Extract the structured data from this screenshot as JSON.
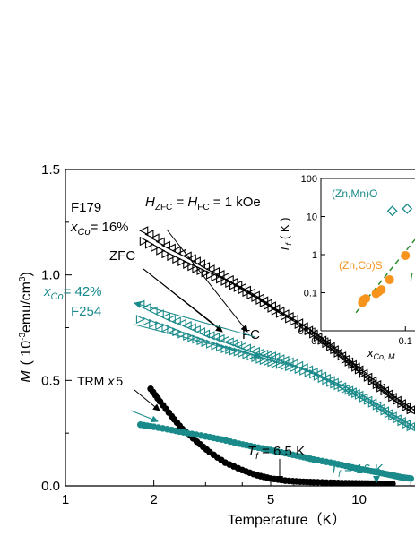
{
  "colors": {
    "black": "#000000",
    "teal": "#1a8a8a",
    "orange": "#f7941d",
    "green": "#2e8b2e"
  },
  "chart_data": [
    {
      "type": "scatter",
      "xscale": "log",
      "xlim": [
        1,
        15
      ],
      "ylim": [
        0,
        1.5
      ],
      "xlabel": "Temperature（K）",
      "ylabel_symbol": "M",
      "ylabel_unit": "( 10",
      "ylabel_exp": "-3",
      "ylabel_unit2": "emu/cm",
      "ylabel_exp2": "3",
      "ylabel_close": ")",
      "x_ticks": [
        1,
        2,
        5,
        10
      ],
      "x_tick_labels": [
        "1",
        "2",
        "5",
        "10"
      ],
      "y_ticks": [
        0,
        0.5,
        1.0,
        1.5
      ],
      "y_tick_labels": [
        "0.0",
        "0.5",
        "1.0",
        "1.5"
      ],
      "annotations": {
        "sample1": "F179",
        "x_sym": "x",
        "x_sub": "Co",
        "x1_val": "= 16%",
        "x2_val": "= 42%",
        "sample2": "F254",
        "field_H": "H",
        "field_sub1": "ZFC",
        "field_eq": " = ",
        "field_sub2": "FC",
        "field_val": " = 1 kOe",
        "zfc": "ZFC",
        "fc": "FC",
        "trm": "TRM",
        "trm_x": "x",
        "trm_num": "5",
        "tf_sym": "T",
        "tf_sub": "f",
        "tf1_val": " = 6.5 K",
        "tf2_val": " = 16 K"
      },
      "series": [
        {
          "color": "#000000",
          "marker": "left-triangle-open",
          "x": [
            1.85,
            2.2,
            2.6,
            3.0,
            3.5,
            4.0,
            4.6,
            5.2,
            6.0,
            7.0,
            8.0,
            9.0,
            10.0,
            11.5,
            13.0,
            15.0
          ],
          "y": [
            1.21,
            1.14,
            1.09,
            1.04,
            0.99,
            0.94,
            0.89,
            0.84,
            0.79,
            0.72,
            0.66,
            0.6,
            0.55,
            0.48,
            0.42,
            0.36
          ]
        },
        {
          "color": "#000000",
          "marker": "right-triangle-open",
          "x": [
            1.85,
            2.2,
            2.6,
            3.0,
            3.5,
            4.0,
            4.6,
            5.2,
            6.0,
            7.0,
            8.0,
            9.0,
            10.0,
            11.5,
            13.0,
            15.0
          ],
          "y": [
            1.16,
            1.1,
            1.05,
            1.01,
            0.97,
            0.93,
            0.88,
            0.83,
            0.78,
            0.72,
            0.66,
            0.6,
            0.55,
            0.48,
            0.42,
            0.36
          ]
        },
        {
          "color": "#1a8a8a",
          "marker": "left-triangle-open",
          "x": [
            1.8,
            2.2,
            2.6,
            3.0,
            3.5,
            4.0,
            4.6,
            5.2,
            6.0,
            7.0,
            8.0,
            9.0,
            10.0,
            11.5,
            13.0,
            15.0
          ],
          "y": [
            0.86,
            0.8,
            0.76,
            0.72,
            0.69,
            0.66,
            0.63,
            0.61,
            0.58,
            0.54,
            0.5,
            0.46,
            0.43,
            0.38,
            0.33,
            0.28
          ]
        },
        {
          "color": "#1a8a8a",
          "marker": "right-triangle-open",
          "x": [
            1.8,
            2.2,
            2.6,
            3.0,
            3.5,
            4.0,
            4.6,
            5.2,
            6.0,
            7.0,
            8.0,
            9.0,
            10.0,
            11.5,
            13.0,
            15.0
          ],
          "y": [
            0.79,
            0.75,
            0.71,
            0.68,
            0.65,
            0.63,
            0.6,
            0.58,
            0.56,
            0.53,
            0.49,
            0.46,
            0.43,
            0.38,
            0.33,
            0.28
          ]
        },
        {
          "color": "#000000",
          "marker": "circle-filled",
          "x": [
            1.95,
            2.1,
            2.3,
            2.5,
            2.8,
            3.1,
            3.5,
            4.0,
            4.5,
            5.0,
            5.6,
            6.3,
            7.0,
            8.0,
            9.0,
            10.0,
            11.0,
            12.0,
            13.0
          ],
          "y": [
            0.46,
            0.4,
            0.33,
            0.27,
            0.21,
            0.16,
            0.11,
            0.075,
            0.05,
            0.035,
            0.025,
            0.02,
            0.018,
            0.015,
            0.013,
            0.012,
            0.011,
            0.01,
            0.01
          ]
        },
        {
          "color": "#1a8a8a",
          "marker": "circle-filled",
          "x": [
            1.8,
            2.0,
            2.3,
            2.6,
            3.0,
            3.4,
            3.9,
            4.4,
            5.0,
            5.6,
            6.3,
            7.0,
            8.0,
            9.0,
            10.0,
            11.0,
            12.0,
            13.0,
            14.0,
            15.0
          ],
          "y": [
            0.29,
            0.28,
            0.265,
            0.25,
            0.235,
            0.22,
            0.2,
            0.185,
            0.17,
            0.155,
            0.14,
            0.125,
            0.11,
            0.095,
            0.08,
            0.07,
            0.06,
            0.05,
            0.04,
            0.035
          ]
        }
      ]
    },
    {
      "type": "scatter",
      "xscale": "log",
      "yscale": "log",
      "xlim": [
        0.01,
        0.13
      ],
      "ylim": [
        0.01,
        100
      ],
      "ylabel_sym": "T",
      "ylabel_sub": "f",
      "ylabel_unit": "( K )",
      "xlabel_sym": "x",
      "xlabel_sub": "Co, M",
      "x_ticks": [
        0.01,
        0.1
      ],
      "x_tick_labels": [
        "0.01",
        "0.1"
      ],
      "y_ticks": [
        0.01,
        0.1,
        1,
        10,
        100
      ],
      "y_tick_labels": [
        "0.01",
        "0.1",
        "1",
        "10",
        "100"
      ],
      "label_znmno": "(Zn,Mn)O",
      "label_zncos": "(Zn,Co)S",
      "label_fit": "T",
      "series": [
        {
          "color": "#1a8a8a",
          "marker": "diamond-open",
          "x": [
            0.07,
            0.105
          ],
          "y": [
            14,
            16
          ]
        },
        {
          "color": "#f7941d",
          "marker": "circle-filled",
          "x": [
            0.031,
            0.032,
            0.034,
            0.045,
            0.048,
            0.052,
            0.065,
            0.1
          ],
          "y": [
            0.055,
            0.065,
            0.07,
            0.095,
            0.105,
            0.12,
            0.22,
            0.95
          ]
        }
      ],
      "fit_line": {
        "color": "#2e8b2e",
        "x": [
          0.026,
          0.13
        ],
        "y": [
          0.03,
          2.5
        ]
      }
    }
  ]
}
